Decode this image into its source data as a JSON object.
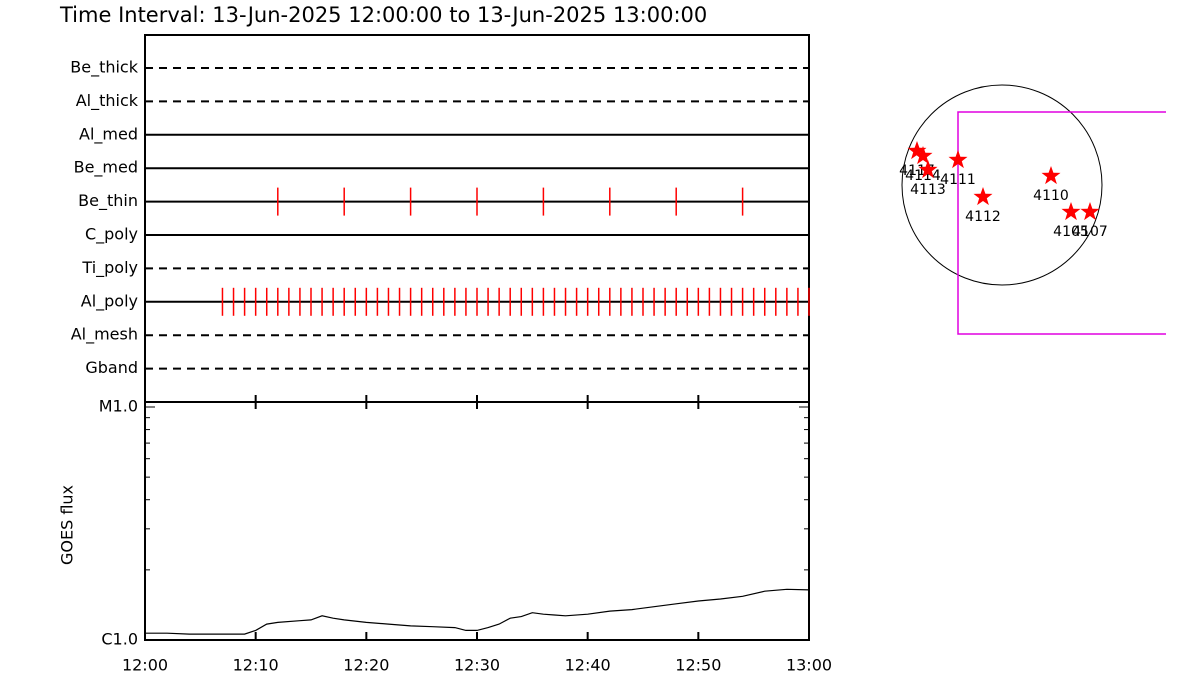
{
  "chart_data": [
    {
      "type": "timeline",
      "title": "Time Interval: 13-Jun-2025 12:00:00 to 13-Jun-2025 13:00:00",
      "xlim": [
        "12:00",
        "13:00"
      ],
      "color": "#ff0000",
      "rows": [
        {
          "name": "Be_thick",
          "style": "dashed",
          "times": []
        },
        {
          "name": "Al_thick",
          "style": "dashed",
          "times": []
        },
        {
          "name": "Al_med",
          "style": "solid",
          "times": []
        },
        {
          "name": "Be_med",
          "style": "solid",
          "times": []
        },
        {
          "name": "Be_thin",
          "style": "solid",
          "times": [
            "12:12",
            "12:18",
            "12:24",
            "12:30",
            "12:36",
            "12:42",
            "12:48",
            "12:54"
          ]
        },
        {
          "name": "C_poly",
          "style": "solid",
          "times": []
        },
        {
          "name": "Ti_poly",
          "style": "dashed",
          "times": []
        },
        {
          "name": "Al_poly",
          "style": "solid",
          "times": [
            "12:07",
            "12:08",
            "12:09",
            "12:10",
            "12:11",
            "12:12",
            "12:13",
            "12:14",
            "12:15",
            "12:16",
            "12:17",
            "12:18",
            "12:19",
            "12:20",
            "12:21",
            "12:22",
            "12:23",
            "12:24",
            "12:25",
            "12:26",
            "12:27",
            "12:28",
            "12:29",
            "12:30",
            "12:31",
            "12:32",
            "12:33",
            "12:34",
            "12:35",
            "12:36",
            "12:37",
            "12:38",
            "12:39",
            "12:40",
            "12:41",
            "12:42",
            "12:43",
            "12:44",
            "12:45",
            "12:46",
            "12:47",
            "12:48",
            "12:49",
            "12:50",
            "12:51",
            "12:52",
            "12:53",
            "12:54",
            "12:55",
            "12:56",
            "12:57",
            "12:58",
            "12:59",
            "13:00"
          ]
        },
        {
          "name": "Al_mesh",
          "style": "dashed",
          "times": []
        },
        {
          "name": "Gband",
          "style": "dashed",
          "times": []
        }
      ]
    },
    {
      "type": "line",
      "y_label": "GOES flux",
      "log_y": true,
      "color": "#000000",
      "xlim": [
        "12:00",
        "13:00"
      ],
      "xticks": [
        "12:00",
        "12:10",
        "12:20",
        "12:30",
        "12:40",
        "12:50",
        "13:00"
      ],
      "ylim": [
        1e-06,
        1e-05
      ],
      "yticks": [
        {
          "value": 1e-06,
          "label": "C1.0"
        },
        {
          "value": 1e-05,
          "label": "M1.0"
        }
      ],
      "yminor_ticks": [
        2e-06,
        3e-06,
        4e-06,
        5e-06,
        6e-06,
        7e-06,
        8e-06,
        9e-06
      ],
      "x": [
        "12:00",
        "12:02",
        "12:04",
        "12:06",
        "12:08",
        "12:09",
        "12:10",
        "12:11",
        "12:12",
        "12:14",
        "12:15",
        "12:16",
        "12:17",
        "12:18",
        "12:20",
        "12:22",
        "12:24",
        "12:26",
        "12:28",
        "12:29",
        "12:30",
        "12:31",
        "12:32",
        "12:33",
        "12:34",
        "12:35",
        "12:36",
        "12:37",
        "12:38",
        "12:40",
        "12:42",
        "12:44",
        "12:46",
        "12:48",
        "12:50",
        "12:52",
        "12:54",
        "12:56",
        "12:58",
        "13:00"
      ],
      "values": [
        1.07e-06,
        1.07e-06,
        1.06e-06,
        1.06e-06,
        1.06e-06,
        1.06e-06,
        1.1e-06,
        1.17e-06,
        1.19e-06,
        1.21e-06,
        1.22e-06,
        1.27e-06,
        1.24e-06,
        1.22e-06,
        1.19e-06,
        1.17e-06,
        1.15e-06,
        1.14e-06,
        1.13e-06,
        1.1e-06,
        1.1e-06,
        1.13e-06,
        1.17e-06,
        1.24e-06,
        1.26e-06,
        1.31e-06,
        1.29e-06,
        1.28e-06,
        1.27e-06,
        1.29e-06,
        1.33e-06,
        1.35e-06,
        1.39e-06,
        1.43e-06,
        1.47e-06,
        1.5e-06,
        1.54e-06,
        1.62e-06,
        1.65e-06,
        1.64e-06
      ]
    },
    {
      "type": "scatter",
      "xlim": [
        -1,
        1
      ],
      "ylim": [
        -1,
        1
      ],
      "color": "#ff0000",
      "labels": [
        "4117",
        "4114",
        "4113",
        "4111",
        "4112",
        "4110",
        "4105",
        "4107"
      ],
      "x": [
        -0.85,
        -0.79,
        -0.74,
        -0.44,
        -0.19,
        0.49,
        0.69,
        0.88
      ],
      "y": [
        0.34,
        0.29,
        0.15,
        0.25,
        -0.12,
        0.09,
        -0.27,
        -0.27
      ]
    }
  ]
}
